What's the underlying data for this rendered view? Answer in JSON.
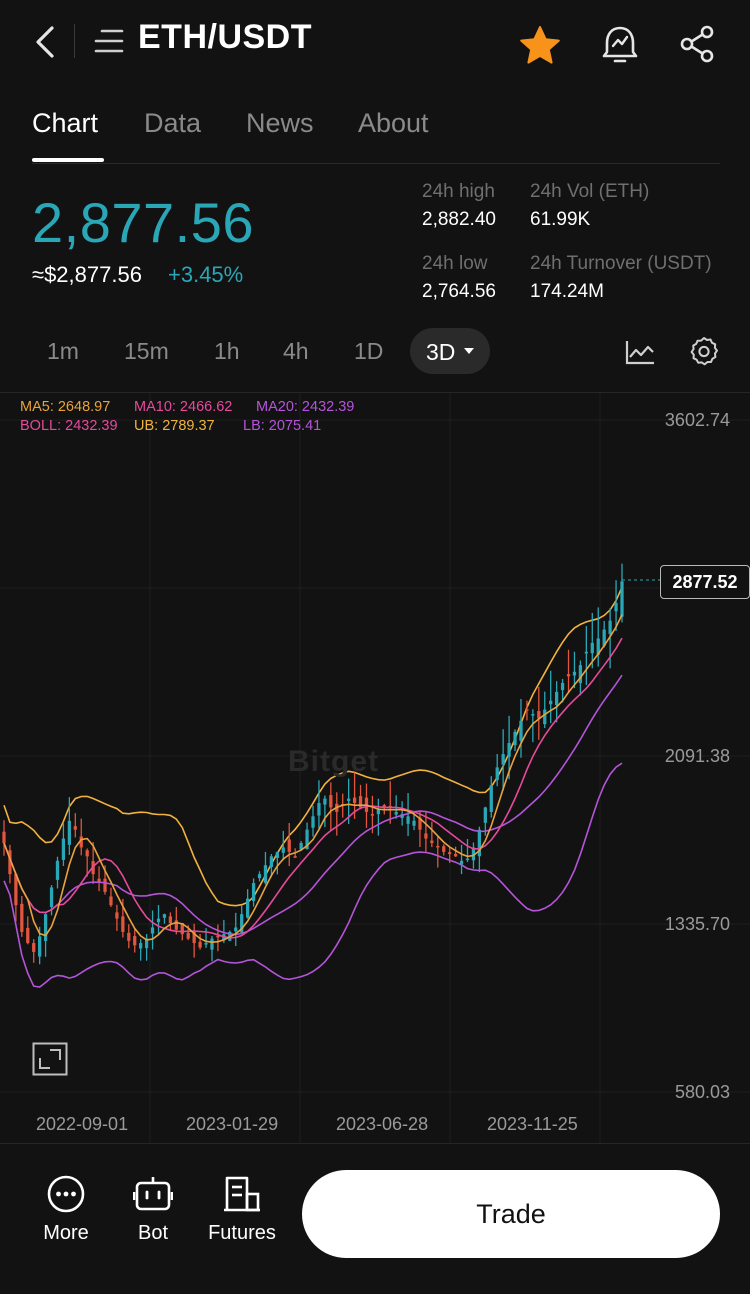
{
  "header": {
    "title": "ETH/USDT",
    "icons": [
      "back-icon",
      "menu-icon",
      "star-icon",
      "price-alert-icon",
      "share-icon"
    ],
    "star_color": "#F7931A"
  },
  "tabs": [
    {
      "label": "Chart",
      "active": true
    },
    {
      "label": "Data",
      "active": false
    },
    {
      "label": "News",
      "active": false
    },
    {
      "label": "About",
      "active": false
    }
  ],
  "ticker": {
    "price": "2,877.56",
    "fiat": "≈$2,877.56",
    "change": "+3.45%",
    "accent": "#2AA7B7",
    "stats": {
      "high_label": "24h high",
      "high": "2,882.40",
      "vol_label": "24h Vol (ETH)",
      "vol": "61.99K",
      "low_label": "24h low",
      "low": "2,764.56",
      "turnover_label": "24h Turnover (USDT)",
      "turnover": "174.24M"
    }
  },
  "intervals": {
    "items": [
      "1m",
      "15m",
      "1h",
      "4h",
      "1D"
    ],
    "selected": "3D"
  },
  "indicators": {
    "ma5": "MA5: 2648.97",
    "ma10": "MA10: 2466.62",
    "ma20": "MA20: 2432.39",
    "boll": "BOLL: 2432.39",
    "ub": "UB: 2789.37",
    "lb": "LB: 2075.41",
    "colors": {
      "ma5": "#E8A33D",
      "ma10": "#E64A9C",
      "ma20": "#B455D9",
      "boll": "#E64A9C",
      "ub": "#F2B33D",
      "lb": "#B455D9"
    }
  },
  "watermark": "Bitget",
  "chart_data": {
    "type": "candlestick",
    "y_axis_labels": [
      "3602.74",
      "2091.38",
      "1335.70",
      "580.03"
    ],
    "x_axis_labels": [
      "2022-09-01",
      "2023-01-29",
      "2023-06-28",
      "2023-11-25"
    ],
    "last_price_tag": "2877.52",
    "ylim": [
      580.03,
      3602.74
    ],
    "up_color": "#2AA7B7",
    "down_color": "#E2553E",
    "close_series": [
      1700,
      1560,
      1420,
      1300,
      1250,
      1210,
      1280,
      1380,
      1500,
      1620,
      1720,
      1800,
      1760,
      1680,
      1640,
      1560,
      1520,
      1480,
      1420,
      1360,
      1300,
      1260,
      1240,
      1250,
      1270,
      1320,
      1360,
      1380,
      1340,
      1310,
      1290,
      1270,
      1250,
      1230,
      1250,
      1270,
      1280,
      1290,
      1300,
      1320,
      1380,
      1450,
      1520,
      1560,
      1600,
      1640,
      1660,
      1680,
      1660,
      1640,
      1700,
      1760,
      1820,
      1880,
      1900,
      1860,
      1840,
      1870,
      1900,
      1880,
      1860,
      1840,
      1830,
      1850,
      1870,
      1860,
      1840,
      1830,
      1820,
      1800,
      1760,
      1720,
      1700,
      1680,
      1660,
      1650,
      1640,
      1620,
      1630,
      1680,
      1760,
      1860,
      1960,
      2040,
      2100,
      2150,
      2200,
      2250,
      2300,
      2280,
      2260,
      2300,
      2340,
      2380,
      2420,
      2450,
      2470,
      2500,
      2560,
      2600,
      2620,
      2660,
      2700,
      2780,
      2877
    ]
  },
  "bottom_nav": [
    {
      "label": "More",
      "icon": "more-icon"
    },
    {
      "label": "Bot",
      "icon": "bot-icon"
    },
    {
      "label": "Futures",
      "icon": "futures-icon"
    }
  ],
  "trade_label": "Trade"
}
